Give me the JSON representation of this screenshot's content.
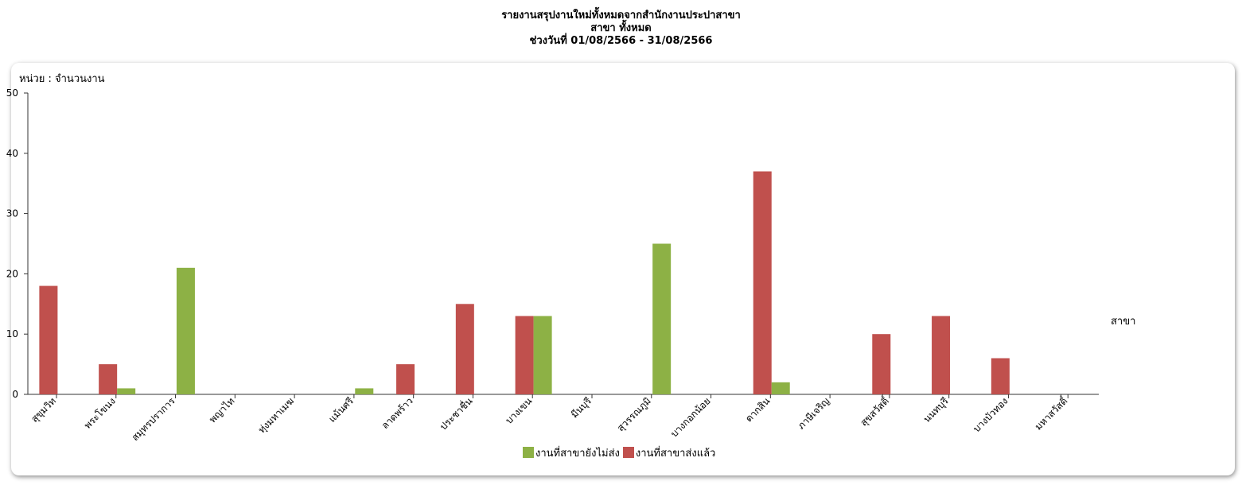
{
  "header": {
    "line1": "รายงานสรุปงานใหม่ทั้งหมดจากสำนักงานประปาสาขา",
    "line2": "สาขา ทั้งหมด",
    "line3": "ช่วงวันที่ 01/08/2566 - 31/08/2566"
  },
  "colors": {
    "sent": "#c0504d",
    "not_sent": "#8db145",
    "axis": "#333333"
  },
  "chart_data": {
    "type": "bar",
    "unit_label": "หน่วย : จำนวนงาน",
    "xlabel": "สาขา",
    "ylim": [
      0,
      50
    ],
    "yticks": [
      0,
      10,
      20,
      30,
      40,
      50
    ],
    "grid": false,
    "legend_position": "bottom-center",
    "categories": [
      "สุขุมวิท",
      "พระโขนง",
      "สมุทรปราการ",
      "พญาไท",
      "ทุ่งมหาเมฆ",
      "แม้นศรี",
      "ลาดพร้าว",
      "ประชาชื่น",
      "บางเขน",
      "มีนบุรี",
      "สุวรรณภูมิ",
      "บางกอกน้อย",
      "ตากสิน",
      "ภาษีเจริญ",
      "สุขสวัสดิ์",
      "นนทบุรี",
      "บางบัวทอง",
      "มหาสวัสดิ์"
    ],
    "series": [
      {
        "name": "งานที่สาขาส่งแล้ว",
        "color": "#c0504d",
        "values": [
          18,
          5,
          0,
          0,
          0,
          0,
          5,
          15,
          13,
          0,
          0,
          0,
          37,
          0,
          10,
          13,
          6,
          0
        ]
      },
      {
        "name": "งานที่สาขายังไม่ส่ง",
        "color": "#8db145",
        "values": [
          0,
          1,
          21,
          0,
          0,
          1,
          0,
          0,
          13,
          0,
          25,
          0,
          2,
          0,
          0,
          0,
          0,
          0
        ]
      }
    ],
    "legend_order": [
      "งานที่สาขายังไม่ส่ง",
      "งานที่สาขาส่งแล้ว"
    ]
  }
}
